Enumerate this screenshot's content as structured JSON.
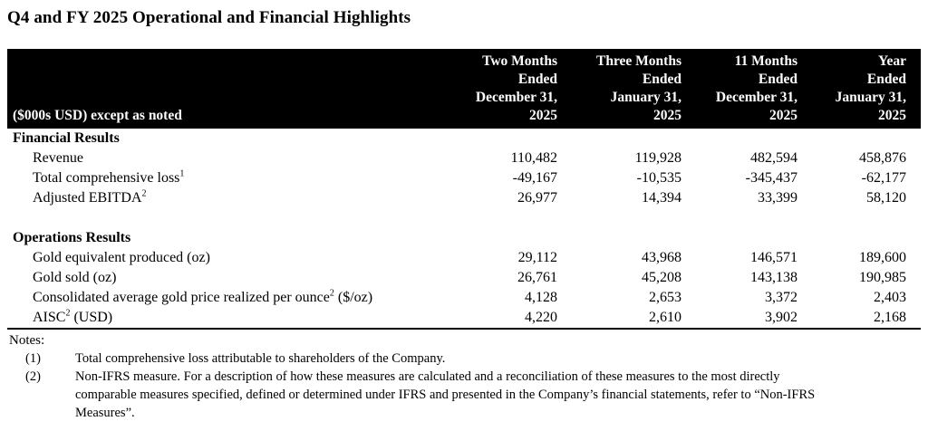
{
  "page_title": "Q4 and FY 2025 Operational and Financial Highlights",
  "table": {
    "row_header": "($000s USD) except as noted",
    "columns": [
      {
        "label": "Two Months\nEnded\nDecember 31,\n2025"
      },
      {
        "label": "Three Months\nEnded\nJanuary 31,\n2025"
      },
      {
        "label": "11 Months\nEnded\nDecember 31,\n2025"
      },
      {
        "label": "Year\nEnded\nJanuary 31,\n2025"
      }
    ],
    "sections": [
      {
        "title": "Financial Results",
        "rows": [
          {
            "label": "Revenue",
            "sup": "",
            "suffix": "",
            "values": [
              "110,482",
              "119,928",
              "482,594",
              "458,876"
            ]
          },
          {
            "label": "Total comprehensive loss",
            "sup": "1",
            "suffix": "",
            "values": [
              "-49,167",
              "-10,535",
              "-345,437",
              "-62,177"
            ]
          },
          {
            "label": "Adjusted EBITDA",
            "sup": "2",
            "suffix": "",
            "values": [
              "26,977",
              "14,394",
              "33,399",
              "58,120"
            ]
          }
        ]
      },
      {
        "title": "Operations Results",
        "rows": [
          {
            "label": "Gold equivalent produced (oz)",
            "sup": "",
            "suffix": "",
            "values": [
              "29,112",
              "43,968",
              "146,571",
              "189,600"
            ]
          },
          {
            "label": "Gold sold (oz)",
            "sup": "",
            "suffix": "",
            "values": [
              "26,761",
              "45,208",
              "143,138",
              "190,985"
            ]
          },
          {
            "label": "Consolidated average gold price realized per ounce",
            "sup": "2",
            "suffix": " ($/oz)",
            "values": [
              "4,128",
              "2,653",
              "3,372",
              "2,403"
            ]
          },
          {
            "label": "AISC",
            "sup": "2",
            "suffix": " (USD)",
            "values": [
              "4,220",
              "2,610",
              "3,902",
              "2,168"
            ]
          }
        ]
      }
    ]
  },
  "notes": {
    "title": "Notes:",
    "items": [
      {
        "num": "(1)",
        "text": "Total comprehensive loss attributable to shareholders of the Company."
      },
      {
        "num": "(2)",
        "text": "Non-IFRS measure. For a description of how these measures are calculated and a reconciliation of these measures to the most directly\ncomparable measures specified, defined or determined under IFRS and presented in the Company’s financial statements, refer to “Non-IFRS\nMeasures”."
      }
    ]
  }
}
